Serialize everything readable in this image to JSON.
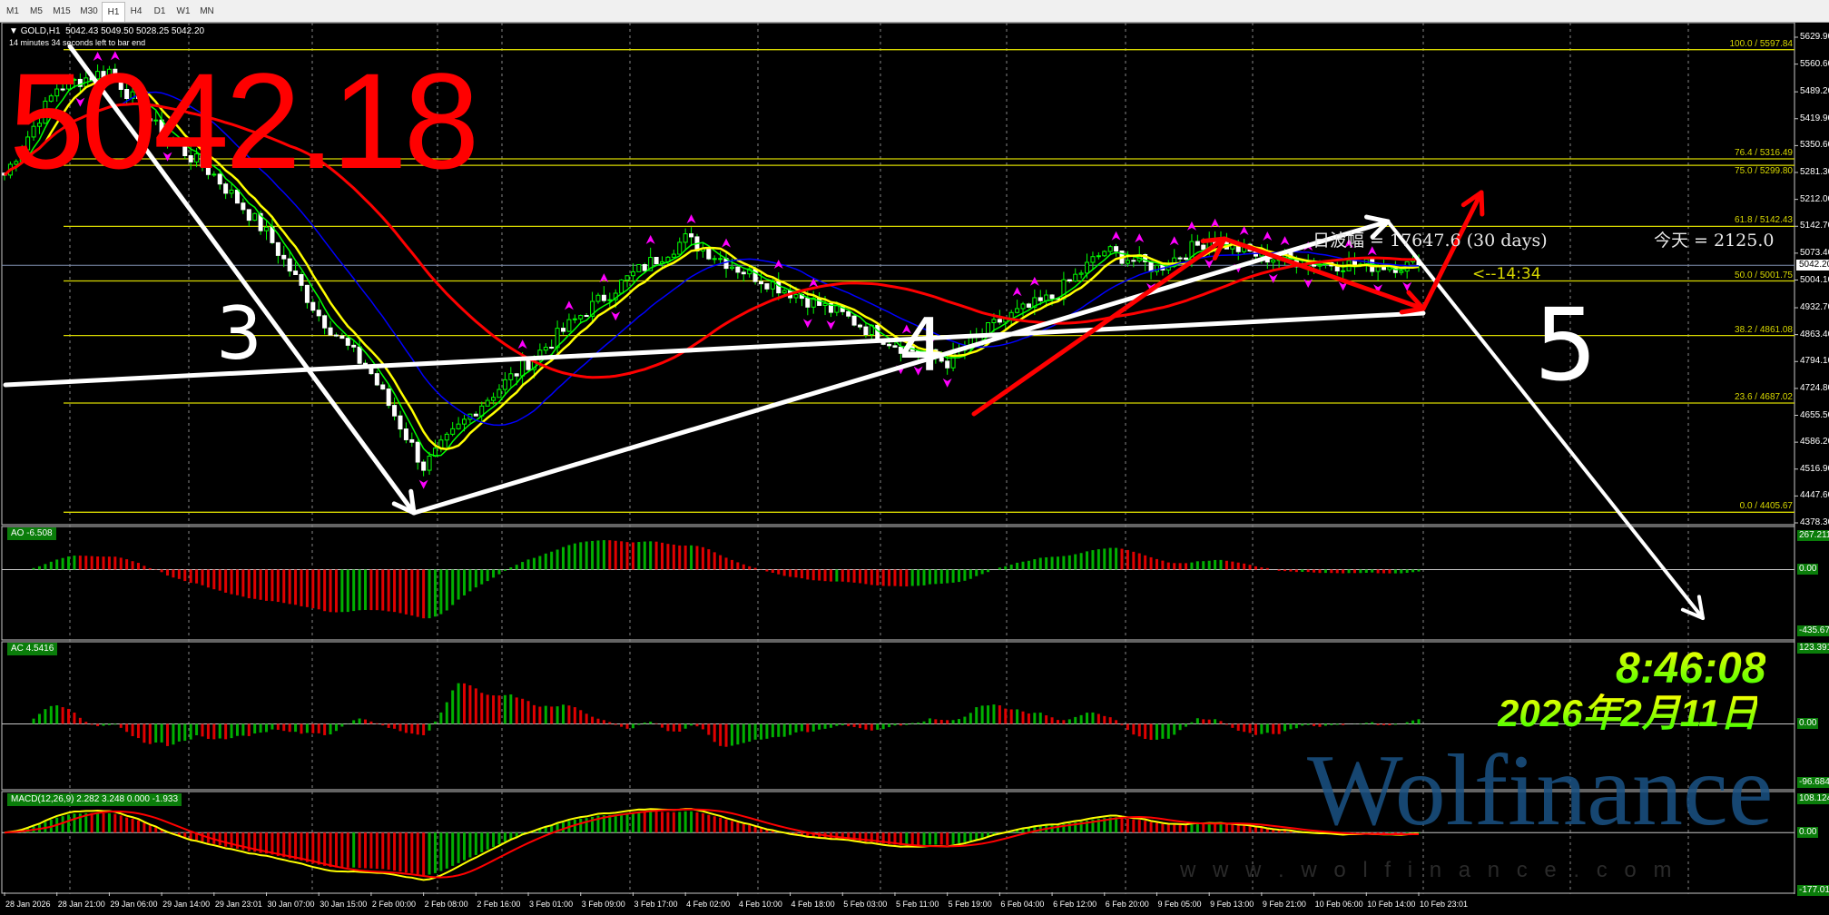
{
  "tabs": [
    {
      "label": "M1"
    },
    {
      "label": "M5"
    },
    {
      "label": "M15"
    },
    {
      "label": "M30"
    },
    {
      "label": "H1",
      "selected": true
    },
    {
      "label": "H4"
    },
    {
      "label": "D1"
    },
    {
      "label": "W1"
    },
    {
      "label": "MN"
    }
  ],
  "header": {
    "symbol": "GOLD,H1",
    "ohlc": "5042.43 5049.50 5028.25 5042.20",
    "bar_timer": "14 minutes 34 seconds left to bar end"
  },
  "annotations": {
    "big_price": "5042.18",
    "daily_range": "日波幅 = 17647.6  (30 days)",
    "today": "今天 = 2125.0",
    "timer": "<--14:34",
    "wave_labels": [
      "3",
      "4",
      "5"
    ],
    "clock_time": "8:46:08",
    "clock_date": "2026年2月11日",
    "watermark": "Wolfinance",
    "watermark_url": "w w w . w o l f i n a n c e . c o m"
  },
  "indicators": {
    "ao": {
      "label": "AO -6.508",
      "max": "267.211",
      "zero": "0.00",
      "min": "-435.676"
    },
    "ac": {
      "label": "AC 4.5416",
      "max": "123.3915",
      "zero": "0.00",
      "min": "-96.6849"
    },
    "macd": {
      "label": "MACD(12,26,9) 2.282 3.248 0.000 -1.933",
      "max": "108.124",
      "zero": "0.00",
      "min": "-177.011"
    }
  },
  "colors": {
    "bull": "#00ff00",
    "bear": "#ff0000",
    "fib": "#d8d800",
    "ma_fast": "#00ff00",
    "ma_mid": "#ffff00",
    "ma_blue": "#0000ff",
    "ma_slow": "#ff0000",
    "fractal": "#ff00ff"
  },
  "chart_data": {
    "type": "candlestick",
    "symbol": "GOLD",
    "timeframe": "H1",
    "ylim": [
      4378.3,
      5629.9
    ],
    "price_ticks": [
      "5629.90",
      "5560.60",
      "5489.20",
      "5419.90",
      "5350.60",
      "5281.30",
      "5212.00",
      "5142.70",
      "5073.40",
      "5004.10",
      "4932.70",
      "4863.40",
      "4794.10",
      "4724.80",
      "4655.50",
      "4586.20",
      "4516.90",
      "4447.60",
      "4378.30"
    ],
    "current_price": "5042.20",
    "time_labels": [
      "28 Jan 2026",
      "28 Jan 21:00",
      "29 Jan 06:00",
      "29 Jan 14:00",
      "29 Jan 23:01",
      "30 Jan 07:00",
      "30 Jan 15:00",
      "2 Feb 00:00",
      "2 Feb 08:00",
      "2 Feb 16:00",
      "3 Feb 01:00",
      "3 Feb 09:00",
      "3 Feb 17:00",
      "4 Feb 02:00",
      "4 Feb 10:00",
      "4 Feb 18:00",
      "5 Feb 03:00",
      "5 Feb 11:00",
      "5 Feb 19:00",
      "6 Feb 04:00",
      "6 Feb 12:00",
      "6 Feb 20:00",
      "9 Feb 05:00",
      "9 Feb 13:00",
      "9 Feb 21:00",
      "10 Feb 06:00",
      "10 Feb 14:00",
      "10 Feb 23:01"
    ],
    "approx_close_at_labels": [
      5275,
      5500,
      5545,
      5380,
      5275,
      5125,
      4914,
      4763,
      4523,
      4673,
      4793,
      4914,
      5019,
      5110,
      5035,
      4974,
      4914,
      4839,
      4793,
      4899,
      4959,
      5080,
      5035,
      5110,
      5065,
      5050,
      5042,
      5042.2
    ],
    "fibonacci": [
      {
        "level": "100.0",
        "price": "5597.84"
      },
      {
        "level": "76.4",
        "price": "5316.49"
      },
      {
        "level": "75.0",
        "price": "5299.80"
      },
      {
        "level": "61.8",
        "price": "5142.43"
      },
      {
        "level": "50.0",
        "price": "5001.75"
      },
      {
        "level": "38.2",
        "price": "4861.08"
      },
      {
        "level": "23.6",
        "price": "4687.02"
      },
      {
        "level": "0.0",
        "price": "4405.67"
      }
    ]
  }
}
